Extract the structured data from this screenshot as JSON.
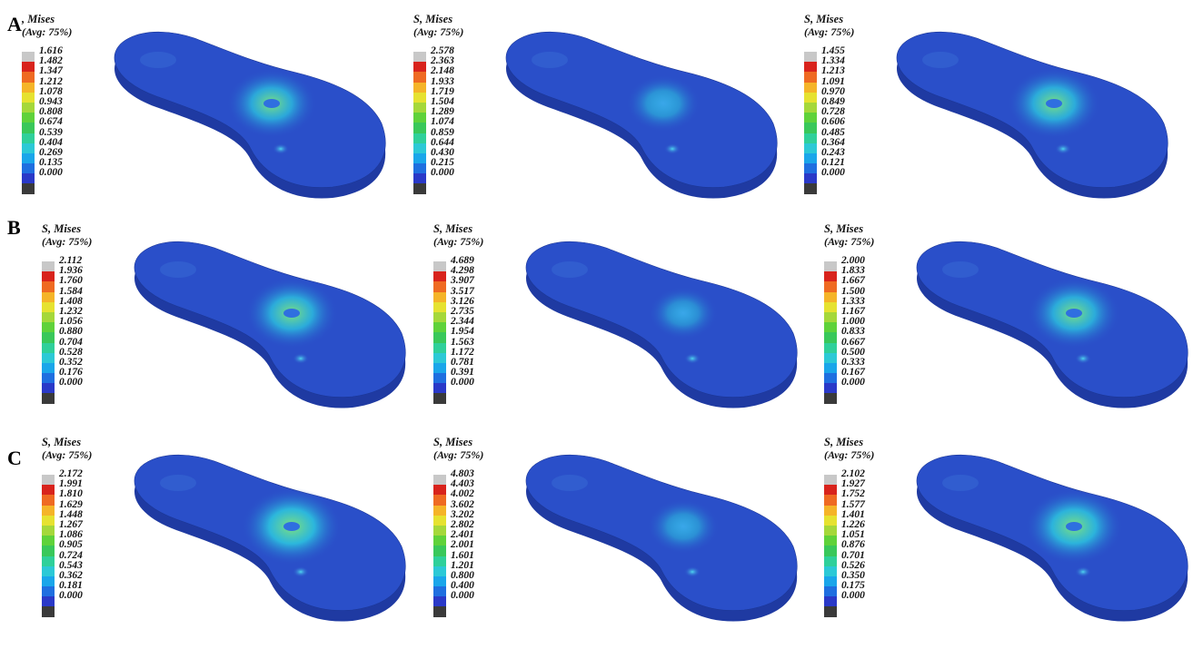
{
  "colors": {
    "insole_base": "#2a4fc9",
    "insole_side": "#1f3aa2",
    "scale": [
      "#3a3a3a",
      "#2a39c8",
      "#1f6fe0",
      "#1aa6ea",
      "#2cc9d6",
      "#2fd09a",
      "#39c85a",
      "#5fd23a",
      "#a5d83a",
      "#e6e230",
      "#f5b428",
      "#ef6a22",
      "#d8231c",
      "#c8c8c8"
    ]
  },
  "rows": [
    {
      "label": "A",
      "panels": [
        {
          "title": ", Mises",
          "subtitle": "(Avg: 75%)",
          "ticks": [
            "1.616",
            "1.482",
            "1.347",
            "1.212",
            "1.078",
            "0.943",
            "0.808",
            "0.674",
            "0.539",
            "0.404",
            "0.269",
            "0.135",
            "0.000"
          ],
          "hotspot_intensity": 0.55
        },
        {
          "title": "S, Mises",
          "subtitle": "(Avg: 75%)",
          "ticks": [
            "2.578",
            "2.363",
            "2.148",
            "1.933",
            "1.719",
            "1.504",
            "1.289",
            "1.074",
            "0.859",
            "0.644",
            "0.430",
            "0.215",
            "0.000"
          ],
          "hotspot_intensity": 0.25
        },
        {
          "title": "S, Mises",
          "subtitle": "(Avg: 75%)",
          "ticks": [
            "1.455",
            "1.334",
            "1.213",
            "1.091",
            "0.970",
            "0.849",
            "0.728",
            "0.606",
            "0.485",
            "0.364",
            "0.243",
            "0.121",
            "0.000"
          ],
          "hotspot_intensity": 0.6
        }
      ]
    },
    {
      "label": "B",
      "panels": [
        {
          "title": "S, Mises",
          "subtitle": "(Avg: 75%)",
          "ticks": [
            "2.112",
            "1.936",
            "1.760",
            "1.584",
            "1.408",
            "1.232",
            "1.056",
            "0.880",
            "0.704",
            "0.528",
            "0.352",
            "0.176",
            "0.000"
          ],
          "hotspot_intensity": 0.6
        },
        {
          "title": "S, Mises",
          "subtitle": "(Avg: 75%)",
          "ticks": [
            "4.689",
            "4.298",
            "3.907",
            "3.517",
            "3.126",
            "2.735",
            "2.344",
            "1.954",
            "1.563",
            "1.172",
            "0.781",
            "0.391",
            "0.000"
          ],
          "hotspot_intensity": 0.15
        },
        {
          "title": "S, Mises",
          "subtitle": "(Avg: 75%)",
          "ticks": [
            "2.000",
            "1.833",
            "1.667",
            "1.500",
            "1.333",
            "1.167",
            "1.000",
            "0.833",
            "0.667",
            "0.500",
            "0.333",
            "0.167",
            "0.000"
          ],
          "hotspot_intensity": 0.6
        }
      ]
    },
    {
      "label": "C",
      "panels": [
        {
          "title": "S, Mises",
          "subtitle": "(Avg: 75%)",
          "ticks": [
            "2.172",
            "1.991",
            "1.810",
            "1.629",
            "1.448",
            "1.267",
            "1.086",
            "0.905",
            "0.724",
            "0.543",
            "0.362",
            "0.181",
            "0.000"
          ],
          "hotspot_intensity": 0.75
        },
        {
          "title": "S, Mises",
          "subtitle": "(Avg: 75%)",
          "ticks": [
            "4.803",
            "4.403",
            "4.002",
            "3.602",
            "3.202",
            "2.802",
            "2.401",
            "2.001",
            "1.601",
            "1.201",
            "0.800",
            "0.400",
            "0.000"
          ],
          "hotspot_intensity": 0.2
        },
        {
          "title": "S, Mises",
          "subtitle": "(Avg: 75%)",
          "ticks": [
            "2.102",
            "1.927",
            "1.752",
            "1.577",
            "1.401",
            "1.226",
            "1.051",
            "0.876",
            "0.701",
            "0.526",
            "0.350",
            "0.175",
            "0.000"
          ],
          "hotspot_intensity": 0.7
        }
      ]
    }
  ]
}
